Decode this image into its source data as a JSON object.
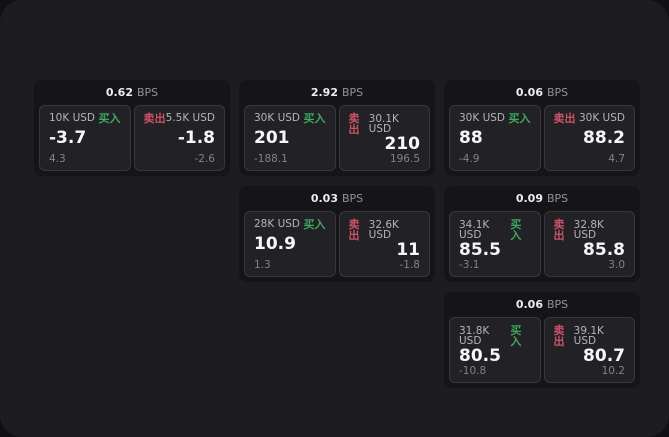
{
  "labels": {
    "bps_unit": "BPS",
    "buy": "买入",
    "sell": "卖出"
  },
  "colors": {
    "buy": "#3fa75d",
    "sell": "#cc5268",
    "board_bg": "#1d1d1f",
    "card_bg": "#151517",
    "panel_bg": "#222226"
  },
  "cards": [
    {
      "bps": "0.62",
      "buy": {
        "size": "10K USD",
        "price": "-3.7",
        "delta": "4.3"
      },
      "sell": {
        "size": "5.5K USD",
        "price": "-1.8",
        "delta": "-2.6"
      }
    },
    {
      "bps": "2.92",
      "buy": {
        "size": "30K USD",
        "price": "201",
        "delta": "-188.1"
      },
      "sell": {
        "size": "30.1K USD",
        "price": "210",
        "delta": "196.5"
      }
    },
    {
      "bps": "0.06",
      "buy": {
        "size": "30K USD",
        "price": "88",
        "delta": "-4.9"
      },
      "sell": {
        "size": "30K USD",
        "price": "88.2",
        "delta": "4.7"
      }
    },
    {
      "bps": "0.03",
      "buy": {
        "size": "28K USD",
        "price": "10.9",
        "delta": "1.3"
      },
      "sell": {
        "size": "32.6K USD",
        "price": "11",
        "delta": "-1.8"
      }
    },
    {
      "bps": "0.09",
      "buy": {
        "size": "34.1K USD",
        "price": "85.5",
        "delta": "-3.1"
      },
      "sell": {
        "size": "32.8K USD",
        "price": "85.8",
        "delta": "3.0"
      }
    },
    {
      "bps": "0.06",
      "buy": {
        "size": "31.8K USD",
        "price": "80.5",
        "delta": "-10.8"
      },
      "sell": {
        "size": "39.1K USD",
        "price": "80.7",
        "delta": "10.2"
      }
    }
  ]
}
